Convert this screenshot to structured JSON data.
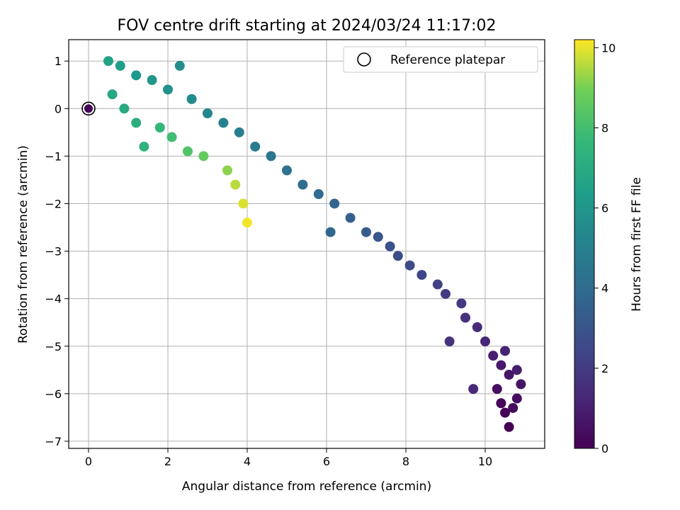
{
  "chart_data": {
    "type": "scatter",
    "title": "FOV centre drift starting at 2024/03/24 11:17:02",
    "xlabel": "Angular distance from reference (arcmin)",
    "ylabel": "Rotation from reference (arcmin)",
    "xlim": [
      -0.5,
      11.5
    ],
    "ylim": [
      -7.15,
      1.45
    ],
    "xticks": [
      0,
      2,
      4,
      6,
      8,
      10
    ],
    "yticks": [
      1,
      0,
      -1,
      -2,
      -3,
      -4,
      -5,
      -6,
      -7
    ],
    "grid": true,
    "legend": {
      "position": "top-right",
      "entries": [
        "Reference platepar"
      ]
    },
    "reference_point": {
      "x": 0,
      "y": 0
    },
    "colorbar": {
      "label": "Hours from first FF file",
      "range": [
        0,
        10.2
      ],
      "ticks": [
        0,
        2,
        4,
        6,
        8,
        10
      ],
      "colormap": "viridis"
    },
    "series": [
      {
        "color_by": "Hours from first FF file",
        "points": [
          {
            "x": 10.6,
            "y": -6.7,
            "c": 0.0
          },
          {
            "x": 10.5,
            "y": -6.4,
            "c": 0.1
          },
          {
            "x": 10.4,
            "y": -6.2,
            "c": 0.2
          },
          {
            "x": 10.7,
            "y": -6.3,
            "c": 0.3
          },
          {
            "x": 10.8,
            "y": -6.1,
            "c": 0.4
          },
          {
            "x": 10.3,
            "y": -5.9,
            "c": 0.5
          },
          {
            "x": 10.9,
            "y": -5.8,
            "c": 0.6
          },
          {
            "x": 10.6,
            "y": -5.6,
            "c": 0.7
          },
          {
            "x": 10.4,
            "y": -5.4,
            "c": 0.8
          },
          {
            "x": 10.8,
            "y": -5.5,
            "c": 0.9
          },
          {
            "x": 10.2,
            "y": -5.2,
            "c": 1.0
          },
          {
            "x": 10.5,
            "y": -5.1,
            "c": 1.1
          },
          {
            "x": 10.0,
            "y": -4.9,
            "c": 1.2
          },
          {
            "x": 9.7,
            "y": -5.9,
            "c": 1.3
          },
          {
            "x": 9.8,
            "y": -4.6,
            "c": 1.4
          },
          {
            "x": 9.5,
            "y": -4.4,
            "c": 1.6
          },
          {
            "x": 9.1,
            "y": -4.9,
            "c": 1.7
          },
          {
            "x": 9.4,
            "y": -4.1,
            "c": 1.9
          },
          {
            "x": 9.0,
            "y": -3.9,
            "c": 2.0
          },
          {
            "x": 8.8,
            "y": -3.7,
            "c": 2.2
          },
          {
            "x": 8.4,
            "y": -3.5,
            "c": 2.4
          },
          {
            "x": 8.1,
            "y": -3.3,
            "c": 2.6
          },
          {
            "x": 7.8,
            "y": -3.1,
            "c": 2.7
          },
          {
            "x": 7.6,
            "y": -2.9,
            "c": 2.9
          },
          {
            "x": 7.3,
            "y": -2.7,
            "c": 3.1
          },
          {
            "x": 7.0,
            "y": -2.6,
            "c": 3.3
          },
          {
            "x": 6.6,
            "y": -2.3,
            "c": 3.5
          },
          {
            "x": 6.2,
            "y": -2.0,
            "c": 3.7
          },
          {
            "x": 6.1,
            "y": -2.6,
            "c": 3.8
          },
          {
            "x": 5.8,
            "y": -1.8,
            "c": 3.9
          },
          {
            "x": 5.4,
            "y": -1.6,
            "c": 4.1
          },
          {
            "x": 5.0,
            "y": -1.3,
            "c": 4.3
          },
          {
            "x": 4.6,
            "y": -1.0,
            "c": 4.5
          },
          {
            "x": 4.2,
            "y": -0.8,
            "c": 4.7
          },
          {
            "x": 3.8,
            "y": -0.5,
            "c": 4.9
          },
          {
            "x": 3.4,
            "y": -0.3,
            "c": 5.1
          },
          {
            "x": 3.0,
            "y": -0.1,
            "c": 5.3
          },
          {
            "x": 2.6,
            "y": 0.2,
            "c": 5.5
          },
          {
            "x": 2.3,
            "y": 0.9,
            "c": 5.6
          },
          {
            "x": 2.0,
            "y": 0.4,
            "c": 5.8
          },
          {
            "x": 1.6,
            "y": 0.6,
            "c": 6.0
          },
          {
            "x": 1.2,
            "y": 0.7,
            "c": 6.2
          },
          {
            "x": 0.8,
            "y": 0.9,
            "c": 6.4
          },
          {
            "x": 0.5,
            "y": 1.0,
            "c": 6.6
          },
          {
            "x": 0.6,
            "y": 0.3,
            "c": 6.8
          },
          {
            "x": 0.9,
            "y": 0.0,
            "c": 7.0
          },
          {
            "x": 1.2,
            "y": -0.3,
            "c": 7.2
          },
          {
            "x": 1.4,
            "y": -0.8,
            "c": 7.4
          },
          {
            "x": 1.8,
            "y": -0.4,
            "c": 7.6
          },
          {
            "x": 2.1,
            "y": -0.6,
            "c": 7.9
          },
          {
            "x": 2.5,
            "y": -0.9,
            "c": 8.3
          },
          {
            "x": 2.9,
            "y": -1.0,
            "c": 8.7
          },
          {
            "x": 3.5,
            "y": -1.3,
            "c": 9.2
          },
          {
            "x": 3.7,
            "y": -1.6,
            "c": 9.6
          },
          {
            "x": 3.9,
            "y": -2.0,
            "c": 9.9
          },
          {
            "x": 4.0,
            "y": -2.4,
            "c": 10.1
          }
        ]
      }
    ]
  }
}
